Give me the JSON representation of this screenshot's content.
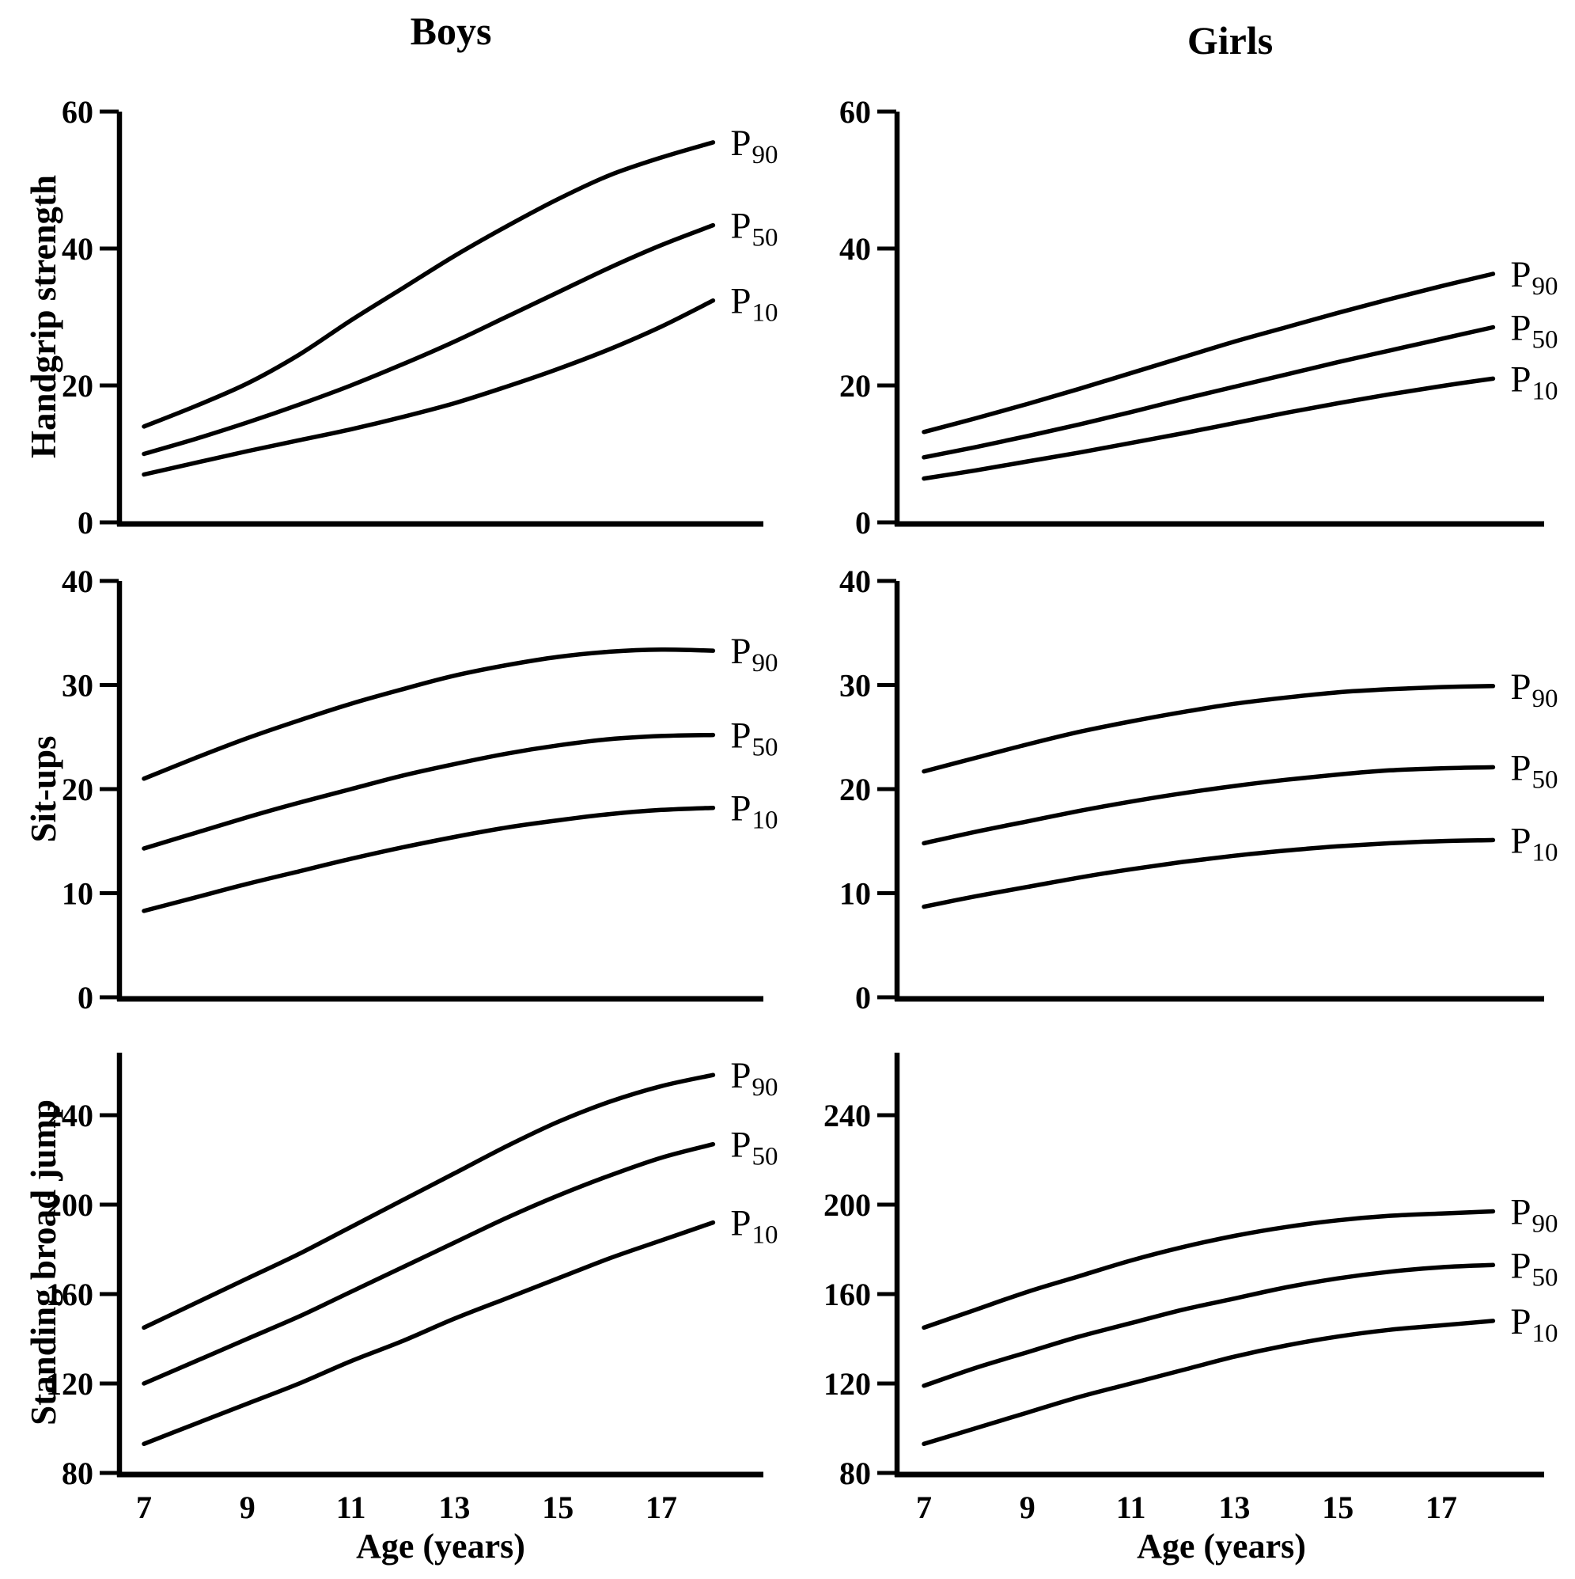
{
  "figure": {
    "columns": [
      {
        "title": "Boys"
      },
      {
        "title": "Girls"
      }
    ],
    "row_labels": [
      "Handgrip strength",
      "Sit-ups",
      "Standing broad jump"
    ],
    "x_axis": {
      "label": "Age (years)",
      "tick_labels": [
        "7",
        "9",
        "11",
        "13",
        "15",
        "17"
      ]
    },
    "line_color": "#000000",
    "background_color": "#ffffff"
  },
  "chart_data": [
    {
      "type": "line",
      "panel": "boys-handgrip",
      "column": "Boys",
      "ylabel": "Handgrip strength",
      "xlabel": "Age (years)",
      "x": [
        7,
        8,
        9,
        10,
        11,
        12,
        13,
        14,
        15,
        16,
        17,
        18
      ],
      "xticks": [
        7,
        9,
        11,
        13,
        15,
        17
      ],
      "yticks": [
        0,
        20,
        40,
        60
      ],
      "ylim": [
        0,
        60
      ],
      "xlim": [
        6.5,
        18.9
      ],
      "grid": false,
      "legend_position": "curve-end-labels",
      "series": [
        {
          "name": "P90",
          "label_main": "P",
          "label_sub": "90",
          "values": [
            14,
            17,
            20.3,
            24.5,
            29.5,
            34.2,
            38.9,
            43.2,
            47.2,
            50.7,
            53.3,
            55.5
          ]
        },
        {
          "name": "P50",
          "label_main": "P",
          "label_sub": "50",
          "values": [
            10,
            12.2,
            14.6,
            17.2,
            20,
            23.1,
            26.4,
            30,
            33.6,
            37.2,
            40.5,
            43.4
          ]
        },
        {
          "name": "P10",
          "label_main": "P",
          "label_sub": "10",
          "values": [
            7,
            8.7,
            10.4,
            12,
            13.6,
            15.4,
            17.4,
            19.8,
            22.4,
            25.3,
            28.6,
            32.4
          ]
        }
      ]
    },
    {
      "type": "line",
      "panel": "girls-handgrip",
      "column": "Girls",
      "ylabel": "Handgrip strength",
      "xlabel": "Age (years)",
      "x": [
        7,
        8,
        9,
        10,
        11,
        12,
        13,
        14,
        15,
        16,
        17,
        18
      ],
      "xticks": [
        7,
        9,
        11,
        13,
        15,
        17
      ],
      "yticks": [
        0,
        20,
        40,
        60
      ],
      "ylim": [
        0,
        60
      ],
      "xlim": [
        6.5,
        18.9
      ],
      "grid": false,
      "legend_position": "curve-end-labels",
      "series": [
        {
          "name": "P90",
          "label_main": "P",
          "label_sub": "90",
          "values": [
            13.2,
            15.2,
            17.3,
            19.5,
            21.8,
            24.1,
            26.4,
            28.5,
            30.6,
            32.6,
            34.5,
            36.3
          ]
        },
        {
          "name": "P50",
          "label_main": "P",
          "label_sub": "50",
          "values": [
            9.5,
            11,
            12.6,
            14.3,
            16.1,
            18,
            19.8,
            21.6,
            23.4,
            25.1,
            26.8,
            28.5
          ]
        },
        {
          "name": "P10",
          "label_main": "P",
          "label_sub": "10",
          "values": [
            6.4,
            7.6,
            8.9,
            10.2,
            11.6,
            13,
            14.5,
            16,
            17.4,
            18.7,
            19.9,
            21
          ]
        }
      ]
    },
    {
      "type": "line",
      "panel": "boys-situps",
      "column": "Boys",
      "ylabel": "Sit-ups",
      "xlabel": "Age (years)",
      "x": [
        7,
        8,
        9,
        10,
        11,
        12,
        13,
        14,
        15,
        16,
        17,
        18
      ],
      "xticks": [
        7,
        9,
        11,
        13,
        15,
        17
      ],
      "yticks": [
        0,
        10,
        20,
        30,
        40
      ],
      "ylim": [
        0,
        40
      ],
      "xlim": [
        6.5,
        18.9
      ],
      "grid": false,
      "legend_position": "curve-end-labels",
      "series": [
        {
          "name": "P90",
          "label_main": "P",
          "label_sub": "90",
          "values": [
            21,
            23,
            24.9,
            26.6,
            28.2,
            29.6,
            30.9,
            31.9,
            32.7,
            33.2,
            33.4,
            33.3
          ]
        },
        {
          "name": "P50",
          "label_main": "P",
          "label_sub": "50",
          "values": [
            14.3,
            15.8,
            17.3,
            18.7,
            20,
            21.3,
            22.4,
            23.4,
            24.2,
            24.8,
            25.1,
            25.2
          ]
        },
        {
          "name": "P10",
          "label_main": "P",
          "label_sub": "10",
          "values": [
            8.3,
            9.6,
            10.9,
            12.1,
            13.3,
            14.4,
            15.4,
            16.3,
            17,
            17.6,
            18,
            18.2
          ]
        }
      ]
    },
    {
      "type": "line",
      "panel": "girls-situps",
      "column": "Girls",
      "ylabel": "Sit-ups",
      "xlabel": "Age (years)",
      "x": [
        7,
        8,
        9,
        10,
        11,
        12,
        13,
        14,
        15,
        16,
        17,
        18
      ],
      "xticks": [
        7,
        9,
        11,
        13,
        15,
        17
      ],
      "yticks": [
        0,
        10,
        20,
        30,
        40
      ],
      "ylim": [
        0,
        40
      ],
      "xlim": [
        6.5,
        18.9
      ],
      "grid": false,
      "legend_position": "curve-end-labels",
      "series": [
        {
          "name": "P90",
          "label_main": "P",
          "label_sub": "90",
          "values": [
            21.7,
            23,
            24.3,
            25.5,
            26.5,
            27.4,
            28.2,
            28.8,
            29.3,
            29.6,
            29.8,
            29.9
          ]
        },
        {
          "name": "P50",
          "label_main": "P",
          "label_sub": "50",
          "values": [
            14.8,
            15.9,
            16.9,
            17.9,
            18.8,
            19.6,
            20.3,
            20.9,
            21.4,
            21.8,
            22,
            22.1
          ]
        },
        {
          "name": "P10",
          "label_main": "P",
          "label_sub": "10",
          "values": [
            8.7,
            9.7,
            10.6,
            11.5,
            12.3,
            13,
            13.6,
            14.1,
            14.5,
            14.8,
            15,
            15.1
          ]
        }
      ]
    },
    {
      "type": "line",
      "panel": "boys-standing-broad-jump",
      "column": "Boys",
      "ylabel": "Standing broad jump",
      "xlabel": "Age (years)",
      "x": [
        7,
        8,
        9,
        10,
        11,
        12,
        13,
        14,
        15,
        16,
        17,
        18
      ],
      "xticks": [
        7,
        9,
        11,
        13,
        15,
        17
      ],
      "yticks": [
        80,
        120,
        160,
        200,
        240
      ],
      "ylim": [
        80,
        268
      ],
      "xlim": [
        6.5,
        18.9
      ],
      "grid": false,
      "legend_position": "curve-end-labels",
      "series": [
        {
          "name": "P90",
          "label_main": "P",
          "label_sub": "90",
          "values": [
            145,
            156,
            167,
            178,
            190,
            202,
            214,
            226,
            237,
            246,
            253,
            258
          ]
        },
        {
          "name": "P50",
          "label_main": "P",
          "label_sub": "50",
          "values": [
            120,
            130,
            140,
            150,
            161,
            172,
            183,
            194,
            204,
            213,
            221,
            227
          ]
        },
        {
          "name": "P10",
          "label_main": "P",
          "label_sub": "10",
          "values": [
            93,
            102,
            111,
            120,
            130,
            139,
            149,
            158,
            167,
            176,
            184,
            192
          ]
        }
      ]
    },
    {
      "type": "line",
      "panel": "girls-standing-broad-jump",
      "column": "Girls",
      "ylabel": "Standing broad jump",
      "xlabel": "Age (years)",
      "x": [
        7,
        8,
        9,
        10,
        11,
        12,
        13,
        14,
        15,
        16,
        17,
        18
      ],
      "xticks": [
        7,
        9,
        11,
        13,
        15,
        17
      ],
      "yticks": [
        80,
        120,
        160,
        200,
        240
      ],
      "ylim": [
        80,
        268
      ],
      "xlim": [
        6.5,
        18.9
      ],
      "grid": false,
      "legend_position": "curve-end-labels",
      "series": [
        {
          "name": "P90",
          "label_main": "P",
          "label_sub": "90",
          "values": [
            145,
            153,
            161,
            168,
            175,
            181,
            186,
            190,
            193,
            195,
            196,
            197
          ]
        },
        {
          "name": "P50",
          "label_main": "P",
          "label_sub": "50",
          "values": [
            119,
            127,
            134,
            141,
            147,
            153,
            158,
            163,
            167,
            170,
            172,
            173
          ]
        },
        {
          "name": "P10",
          "label_main": "P",
          "label_sub": "10",
          "values": [
            93,
            100,
            107,
            114,
            120,
            126,
            132,
            137,
            141,
            144,
            146,
            148
          ]
        }
      ]
    }
  ]
}
